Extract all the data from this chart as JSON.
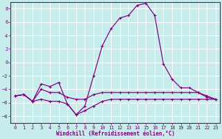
{
  "xlabel": "Windchill (Refroidissement éolien,°C)",
  "background_color": "#c8ecec",
  "line_color": "#800080",
  "grid_color": "#b0d8d8",
  "xlim": [
    -0.5,
    23.5
  ],
  "ylim": [
    -9,
    9
  ],
  "xticks": [
    0,
    1,
    2,
    3,
    4,
    5,
    6,
    7,
    8,
    9,
    10,
    11,
    12,
    13,
    14,
    15,
    16,
    17,
    18,
    19,
    20,
    21,
    22,
    23
  ],
  "yticks": [
    -8,
    -6,
    -4,
    -2,
    0,
    2,
    4,
    6,
    8
  ],
  "line1_x": [
    0,
    1,
    2,
    3,
    4,
    5,
    6,
    7,
    8,
    9,
    10,
    11,
    12,
    13,
    14,
    15,
    16,
    17,
    18,
    19,
    20,
    21,
    22,
    23
  ],
  "line1_y": [
    -5.0,
    -4.8,
    -5.8,
    -3.2,
    -3.6,
    -3.0,
    -6.2,
    -7.8,
    -6.5,
    -2.0,
    2.5,
    5.0,
    6.6,
    7.0,
    8.5,
    8.8,
    7.0,
    -0.2,
    -2.5,
    -3.8,
    -3.8,
    -4.5,
    -5.2,
    -5.5
  ],
  "line2_x": [
    0,
    1,
    2,
    3,
    4,
    5,
    6,
    7,
    8,
    9,
    10,
    11,
    12,
    13,
    14,
    15,
    16,
    17,
    18,
    19,
    20,
    21,
    22,
    23
  ],
  "line2_y": [
    -5.0,
    -4.8,
    -5.8,
    -4.0,
    -4.5,
    -4.5,
    -5.2,
    -5.5,
    -5.5,
    -4.8,
    -4.5,
    -4.5,
    -4.5,
    -4.5,
    -4.5,
    -4.5,
    -4.5,
    -4.5,
    -4.5,
    -4.5,
    -4.5,
    -4.5,
    -5.0,
    -5.5
  ],
  "line3_x": [
    0,
    1,
    2,
    3,
    4,
    5,
    6,
    7,
    8,
    9,
    10,
    11,
    12,
    13,
    14,
    15,
    16,
    17,
    18,
    19,
    20,
    21,
    22,
    23
  ],
  "line3_y": [
    -5.0,
    -4.8,
    -5.8,
    -5.5,
    -5.8,
    -5.8,
    -6.2,
    -7.8,
    -7.2,
    -6.5,
    -5.8,
    -5.5,
    -5.5,
    -5.5,
    -5.5,
    -5.5,
    -5.5,
    -5.5,
    -5.5,
    -5.5,
    -5.5,
    -5.5,
    -5.5,
    -5.5
  ],
  "marker": "+",
  "markersize": 3,
  "linewidth": 0.9,
  "tick_fontsize": 5.0,
  "label_fontsize": 5.5
}
